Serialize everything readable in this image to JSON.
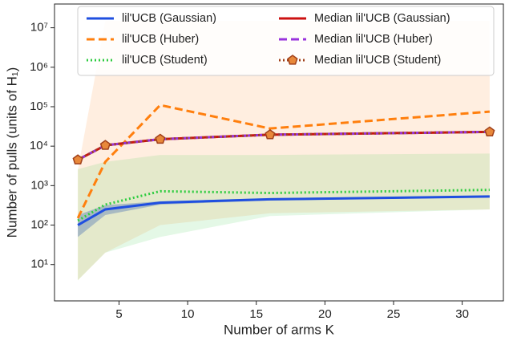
{
  "chart_data": {
    "type": "line",
    "log_y": true,
    "legend": "upper center",
    "xlabel": "Number of arms K",
    "ylabel": "Number of pulls (units of H₁)",
    "x": [
      2,
      4,
      8,
      16,
      32
    ],
    "xlim": [
      0.3,
      33
    ],
    "xticks": [
      5,
      10,
      15,
      20,
      25,
      30
    ],
    "ylim": [
      1.2,
      40000000
    ],
    "yticks": [
      {
        "value": 10,
        "label": "10¹"
      },
      {
        "value": 100,
        "label": "10²"
      },
      {
        "value": 1000,
        "label": "10³"
      },
      {
        "value": 10000,
        "label": "10⁴"
      },
      {
        "value": 100000,
        "label": "10⁵"
      },
      {
        "value": 1000000,
        "label": "10⁶"
      },
      {
        "value": 10000000,
        "label": "10⁷"
      }
    ],
    "series": [
      {
        "name": "lil'UCB (Gaussian)",
        "color": "#1f4fe0",
        "linestyle": "solid",
        "values": [
          100,
          250,
          370,
          450,
          530
        ],
        "lower": [
          50,
          180,
          330,
          420,
          500
        ],
        "upper": [
          180,
          320,
          400,
          480,
          560
        ]
      },
      {
        "name": "lil'UCB (Huber)",
        "color": "#ff7f0e",
        "linestyle": "dashed",
        "values": [
          150,
          4000,
          110000,
          28000,
          75000
        ],
        "lower": [
          4,
          20,
          100,
          200,
          250
        ],
        "upper": [
          2500,
          15000000,
          15000000,
          15000000,
          15000000
        ]
      },
      {
        "name": "lil'UCB (Student)",
        "color": "#2ecc40",
        "linestyle": "dotted",
        "values": [
          130,
          330,
          720,
          650,
          780
        ],
        "lower": [
          4,
          20,
          50,
          170,
          250
        ],
        "upper": [
          2600,
          4000,
          6000,
          6000,
          6500
        ]
      },
      {
        "name": "Median lil'UCB (Gaussian)",
        "color": "#cc1111",
        "linestyle": "solid",
        "values": [
          4500,
          10500,
          15000,
          19500,
          23000
        ]
      },
      {
        "name": "Median lil'UCB (Huber)",
        "color": "#9933dd",
        "linestyle": "dashed",
        "values": [
          4500,
          10500,
          15000,
          19500,
          23000
        ]
      },
      {
        "name": "Median lil'UCB (Student)",
        "color": "#a0401a",
        "linestyle": "dotted",
        "marker": "pentagon",
        "values": [
          4500,
          10500,
          15000,
          19500,
          23000
        ]
      }
    ]
  }
}
